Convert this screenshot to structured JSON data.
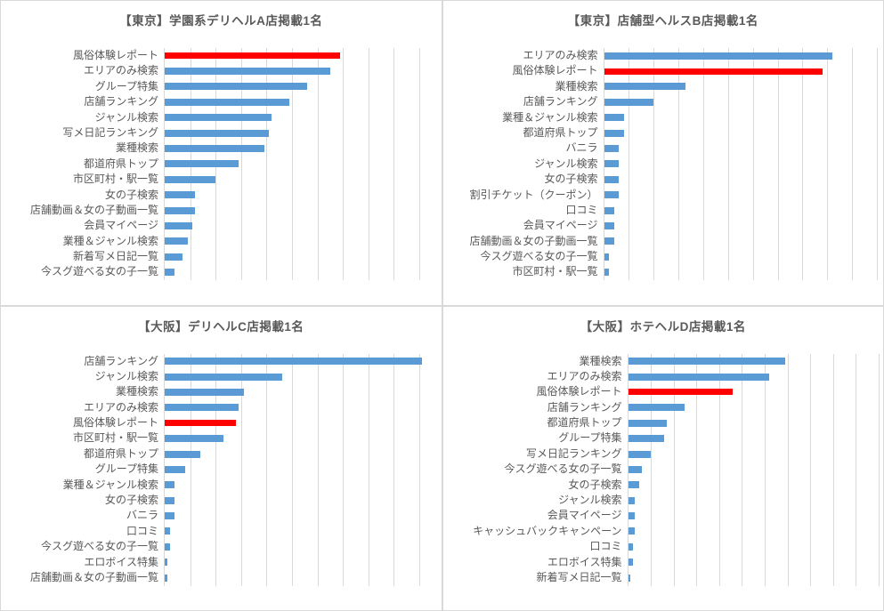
{
  "style": {
    "bar_color": "#5B9BD5",
    "highlight_color": "#FF0000",
    "grid_color": "#D9D9D9",
    "panel_border_color": "#D9D9D9",
    "text_color": "#595959",
    "background": "#FFFFFF"
  },
  "chart_data": [
    {
      "type": "bar",
      "orientation": "horizontal",
      "title": "【東京】学園系デリヘルA店掲載1名",
      "xlabel": "",
      "ylabel": "",
      "xlim": [
        0,
        103
      ],
      "gridline_interval": 10,
      "grid": true,
      "legend": false,
      "bar_color": "#5B9BD5",
      "highlight_color": "#FF0000",
      "highlight_category": "風俗体験レポート",
      "categories": [
        "風俗体験レポート",
        "エリアのみ検索",
        "グループ特集",
        "店舗ランキング",
        "ジャンル検索",
        "写メ日記ランキング",
        "業種検索",
        "都道府県トップ",
        "市区町村・駅一覧",
        "女の子検索",
        "店舗動画＆女の子動画一覧",
        "会員マイページ",
        "業種＆ジャンル検索",
        "新着写メ日記一覧",
        "今スグ遊べる女の子一覧"
      ],
      "values": [
        69,
        65,
        56,
        49,
        42,
        41,
        39,
        29,
        20,
        12,
        12,
        11,
        9,
        7,
        4
      ]
    },
    {
      "type": "bar",
      "orientation": "horizontal",
      "title": "【東京】店舗型ヘルスB店掲載1名",
      "xlabel": "",
      "ylabel": "",
      "xlim": [
        0,
        110
      ],
      "gridline_interval": 10,
      "grid": true,
      "legend": false,
      "bar_color": "#5B9BD5",
      "highlight_color": "#FF0000",
      "highlight_category": "風俗体験レポート",
      "categories": [
        "エリアのみ検索",
        "風俗体験レポート",
        "業種検索",
        "店舗ランキング",
        "業種＆ジャンル検索",
        "都道府県トップ",
        "バニラ",
        "ジャンル検索",
        "女の子検索",
        "割引チケット（クーポン）",
        "口コミ",
        "会員マイページ",
        "店舗動画＆女の子動画一覧",
        "今スグ遊べる女の子一覧",
        "市区町村・駅一覧"
      ],
      "values": [
        92,
        88,
        33,
        20,
        8,
        8,
        6,
        6,
        6,
        6,
        4,
        4,
        4,
        2,
        2
      ]
    },
    {
      "type": "bar",
      "orientation": "horizontal",
      "title": "【大阪】デリヘルC店掲載1名",
      "xlabel": "",
      "ylabel": "",
      "xlim": [
        0,
        103
      ],
      "gridline_interval": 10,
      "grid": true,
      "legend": false,
      "bar_color": "#5B9BD5",
      "highlight_color": "#FF0000",
      "highlight_category": "風俗体験レポート",
      "categories": [
        "店舗ランキング",
        "ジャンル検索",
        "業種検索",
        "エリアのみ検索",
        "風俗体験レポート",
        "市区町村・駅一覧",
        "都道府県トップ",
        "グループ特集",
        "業種＆ジャンル検索",
        "女の子検索",
        "バニラ",
        "口コミ",
        "今スグ遊べる女の子一覧",
        "エロボイス特集",
        "店舗動画＆女の子動画一覧"
      ],
      "values": [
        101,
        46,
        31,
        29,
        28,
        23,
        14,
        8,
        4,
        4,
        4,
        2,
        2,
        1,
        1
      ]
    },
    {
      "type": "bar",
      "orientation": "horizontal",
      "title": "【大阪】ホテヘルD店掲載1名",
      "xlabel": "",
      "ylabel": "",
      "xlim": [
        0,
        110
      ],
      "gridline_interval": 10,
      "grid": true,
      "legend": false,
      "bar_color": "#5B9BD5",
      "highlight_color": "#FF0000",
      "highlight_category": "風俗体験レポート",
      "categories": [
        "業種検索",
        "エリアのみ検索",
        "風俗体験レポート",
        "店舗ランキング",
        "都道府県トップ",
        "グループ特集",
        "写メ日記ランキング",
        "今スグ遊べる女の子一覧",
        "女の子検索",
        "ジャンル検索",
        "会員マイページ",
        "キャッシュバックキャンペーン",
        "口コミ",
        "エロボイス特集",
        "新着写メ日記一覧"
      ],
      "values": [
        69,
        62,
        46,
        25,
        17,
        16,
        10,
        6,
        5,
        3,
        3,
        3,
        2,
        2,
        1
      ]
    }
  ]
}
